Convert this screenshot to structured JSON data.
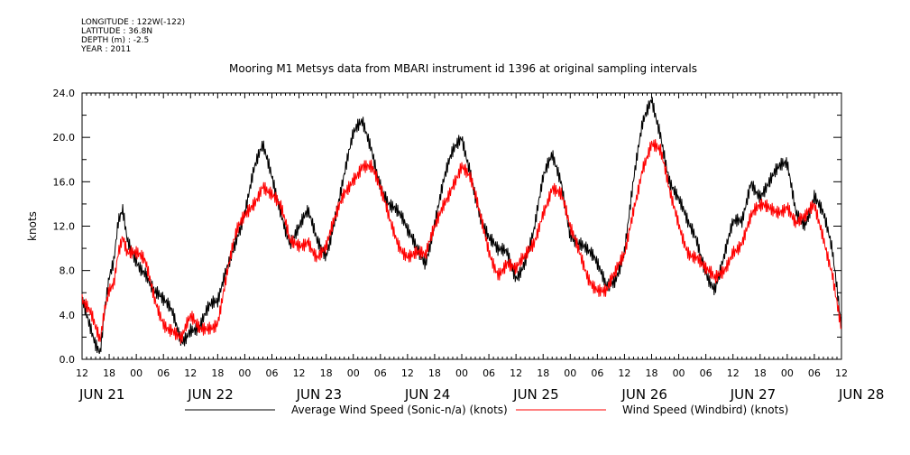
{
  "meta": {
    "lines": [
      "LONGITUDE : 122W(-122)",
      "LATITUDE : 36.8N",
      "DEPTH (m) : -2.5",
      "YEAR : 2011"
    ]
  },
  "chart_data": {
    "type": "line",
    "title": "Mooring M1 Metsys data from MBARI instrument id 1396 at original sampling intervals",
    "ylabel": "knots",
    "ylim": [
      0,
      24
    ],
    "yticks": [
      0,
      4,
      8,
      12,
      16,
      20,
      24
    ],
    "ytick_labels": [
      "0.0",
      "4.0",
      "8.0",
      "12.0",
      "16.0",
      "20.0",
      "24.0"
    ],
    "x_range": [
      "2011-06-21 12:00",
      "2011-06-28 12:00"
    ],
    "x_hour_labels": [
      "12",
      "18",
      "00",
      "06",
      "12",
      "18",
      "00",
      "06",
      "12",
      "18",
      "00",
      "06",
      "12",
      "18",
      "00",
      "06",
      "12",
      "18",
      "00",
      "06",
      "12",
      "18",
      "00",
      "06",
      "12",
      "18",
      "00",
      "06",
      "12"
    ],
    "x_day_labels": [
      "JUN 21",
      "JUN 22",
      "JUN 23",
      "JUN 24",
      "JUN 25",
      "JUN 26",
      "JUN 27",
      "JUN 28"
    ],
    "series": [
      {
        "name": "Average Wind Speed (Sonic-n/a) (knots)",
        "color": "#000000",
        "x_hours_since_start": [
          0,
          2,
          3,
          4,
          5,
          6,
          7,
          8,
          9,
          10,
          12,
          14,
          16,
          18,
          20,
          22,
          24,
          26,
          28,
          30,
          32,
          34,
          36,
          38,
          40,
          42,
          44,
          46,
          48,
          50,
          52,
          54,
          56,
          58,
          60,
          62,
          64,
          66,
          68,
          70,
          72,
          74,
          76,
          78,
          80,
          82,
          84,
          86,
          88,
          90,
          92,
          94,
          96,
          98,
          100,
          102,
          104,
          106,
          108,
          110,
          112,
          114,
          116,
          118,
          120,
          122,
          124,
          126,
          128,
          130,
          132,
          134,
          136,
          138,
          140,
          142,
          144,
          146,
          148,
          150,
          152,
          154,
          156,
          158,
          160,
          162,
          164,
          166,
          168
        ],
        "values": [
          5.6,
          3.5,
          2.2,
          1.2,
          4.5,
          7.0,
          8.0,
          11.5,
          12.8,
          10.5,
          9.5,
          8.5,
          6.0,
          4.5,
          3.8,
          2.0,
          3.5,
          3.0,
          4.0,
          4.5,
          8.5,
          11.5,
          13.5,
          16.5,
          18.5,
          16.5,
          14.0,
          11.0,
          11.5,
          12.5,
          10.5,
          10.0,
          13.5,
          16.5,
          19.5,
          21.0,
          19.5,
          16.5,
          14.0,
          12.5,
          11.0,
          10.5,
          9.5,
          12.5,
          15.5,
          18.0,
          20.0,
          17.5,
          13.5,
          10.5,
          9.0,
          9.5,
          8.0,
          9.5,
          11.5,
          15.5,
          18.0,
          16.5,
          12.0,
          10.5,
          9.0,
          8.0,
          7.0,
          8.0,
          10.0,
          15.5,
          20.5,
          23.5,
          21.0,
          16.5,
          14.0,
          11.5,
          10.5,
          8.5,
          7.0,
          9.0,
          11.5,
          12.0,
          16.5,
          15.5,
          16.0,
          16.5,
          17.0,
          13.5,
          13.0,
          15.0,
          12.5,
          9.0,
          3.0,
          5.5,
          8.0
        ]
      },
      {
        "name": "Wind Speed (Windbird) (knots)",
        "color": "#ff0000",
        "x_hours_since_start": [
          0,
          2,
          3,
          4,
          5,
          6,
          7,
          8,
          9,
          10,
          12,
          14,
          16,
          18,
          20,
          22,
          24,
          26,
          28,
          30,
          32,
          34,
          36,
          38,
          40,
          42,
          44,
          46,
          48,
          50,
          52,
          54,
          56,
          58,
          60,
          62,
          64,
          66,
          68,
          70,
          72,
          74,
          76,
          78,
          80,
          82,
          84,
          86,
          88,
          90,
          92,
          94,
          96,
          98,
          100,
          102,
          104,
          106,
          108,
          110,
          112,
          114,
          116,
          118,
          120,
          122,
          124,
          126,
          128,
          130,
          132,
          134,
          136,
          138,
          140,
          142,
          144,
          146,
          148,
          150,
          152,
          154,
          156,
          158,
          160,
          162,
          164,
          166,
          168
        ],
        "values": [
          5.5,
          3.4,
          2.0,
          1.0,
          4.2,
          6.5,
          7.5,
          10.5,
          11.8,
          10.0,
          9.0,
          8.0,
          5.5,
          4.0,
          3.2,
          1.5,
          3.0,
          2.5,
          3.5,
          4.0,
          7.5,
          10.5,
          12.5,
          14.5,
          16.5,
          15.0,
          13.0,
          10.0,
          10.5,
          11.5,
          9.5,
          9.5,
          12.0,
          15.0,
          17.0,
          18.0,
          17.0,
          14.5,
          12.5,
          11.0,
          10.0,
          9.5,
          8.5,
          11.5,
          14.5,
          16.5,
          17.5,
          15.5,
          12.5,
          10.0,
          8.5,
          9.0,
          7.5,
          8.5,
          10.5,
          14.0,
          16.0,
          14.5,
          11.0,
          9.5,
          8.0,
          7.0,
          6.0,
          7.0,
          9.0,
          14.0,
          18.0,
          19.5,
          18.0,
          14.5,
          12.5,
          10.5,
          9.5,
          7.5,
          6.5,
          8.0,
          10.5,
          11.0,
          12.5,
          13.0,
          13.5,
          14.0,
          14.5,
          12.0,
          12.0,
          13.5,
          11.5,
          8.5,
          2.8,
          5.0,
          7.5
        ]
      }
    ]
  }
}
